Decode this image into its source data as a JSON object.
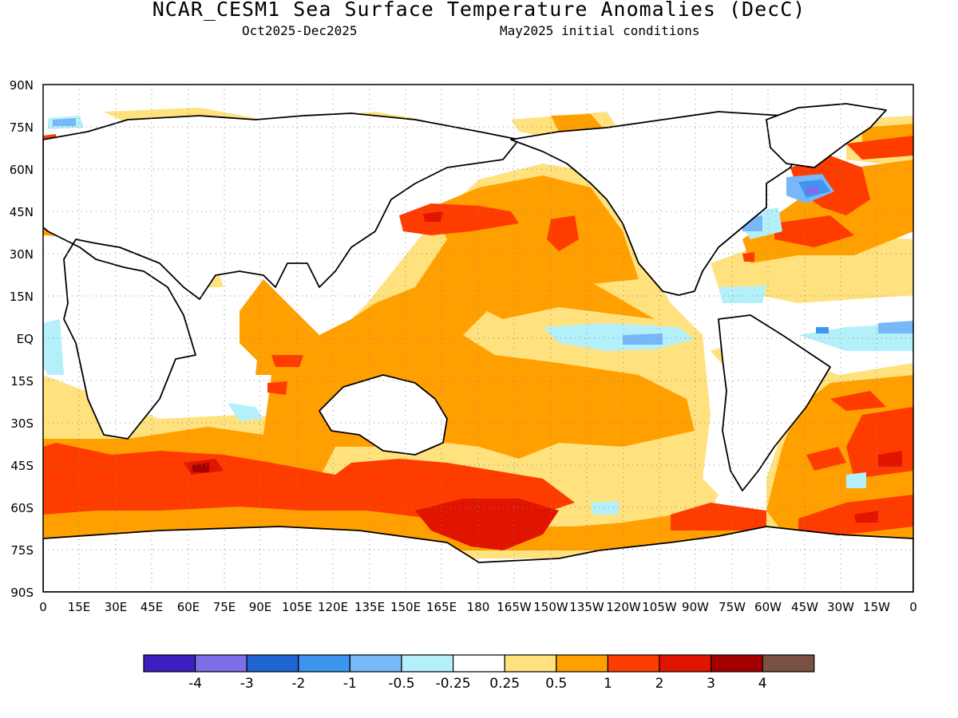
{
  "title": "NCAR_CESM1 Sea Surface Temperature Anomalies (DecC)",
  "subtitle_left": "Oct2025-Dec2025",
  "subtitle_right": "May2025 initial conditions",
  "map": {
    "projection": "equirectangular",
    "lon_range": [
      0,
      360
    ],
    "lat_range": [
      -90,
      90
    ],
    "gridlines": "dotted",
    "lat_labels": [
      "90N",
      "75N",
      "60N",
      "45N",
      "30N",
      "15N",
      "EQ",
      "15S",
      "30S",
      "45S",
      "60S",
      "75S",
      "90S"
    ],
    "lon_labels": [
      "0",
      "15E",
      "30E",
      "45E",
      "60E",
      "75E",
      "90E",
      "105E",
      "120E",
      "135E",
      "150E",
      "165E",
      "180",
      "165W",
      "150W",
      "135W",
      "120W",
      "105W",
      "90W",
      "75W",
      "60W",
      "45W",
      "30W",
      "15W",
      "0"
    ]
  },
  "colorbar": {
    "colors": [
      "#3c1fbe",
      "#7e6ee8",
      "#1e64d2",
      "#3c96f0",
      "#78b8f8",
      "#b4f0fa",
      "#ffffff",
      "#ffe17d",
      "#ffa000",
      "#ff3c00",
      "#e11400",
      "#a50000",
      "#7a5040"
    ],
    "labels": [
      "-4",
      "-3",
      "-2",
      "-1",
      "-0.5",
      "-0.25",
      "0.25",
      "0.5",
      "1",
      "2",
      "3",
      "4"
    ]
  }
}
